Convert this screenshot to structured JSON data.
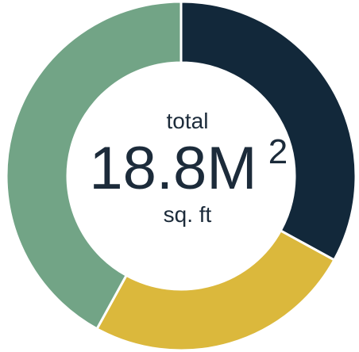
{
  "chart_data": {
    "type": "pie",
    "donut": true,
    "values": [
      33,
      25,
      42
    ],
    "colors": [
      "#12283a",
      "#dbb83c",
      "#72a486"
    ],
    "center_top": "total",
    "center_value": "18.8M",
    "center_superscript": "2",
    "center_bottom": "sq. ft"
  }
}
